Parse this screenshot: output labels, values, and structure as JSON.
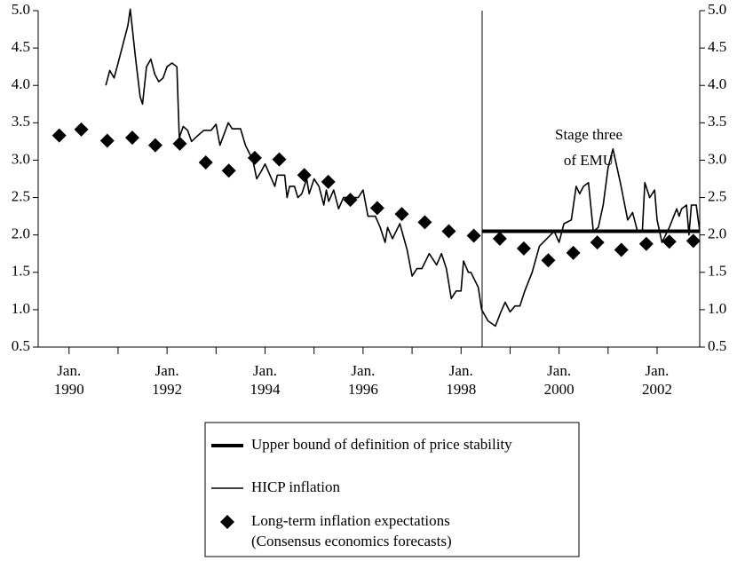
{
  "chart_data": {
    "type": "line",
    "xlim": [
      1989.37,
      2002.87
    ],
    "xticks": [
      {
        "value": 1990,
        "label": "Jan.\n1990"
      },
      {
        "value": 1992,
        "label": "Jan.\n1992"
      },
      {
        "value": 1994,
        "label": "Jan.\n1994"
      },
      {
        "value": 1996,
        "label": "Jan.\n1996"
      },
      {
        "value": 1998,
        "label": "Jan.\n1998"
      },
      {
        "value": 2000,
        "label": "Jan.\n2000"
      },
      {
        "value": 2002,
        "label": "Jan.\n2002"
      }
    ],
    "xminorticks": [
      1991,
      1993,
      1995,
      1997,
      1999,
      2001
    ],
    "ylim": [
      0.5,
      5.0
    ],
    "yticks": [
      {
        "value": 0.5,
        "label": "0.5"
      },
      {
        "value": 1,
        "label": "1.0"
      },
      {
        "value": 1.5,
        "label": "1.5"
      },
      {
        "value": 2,
        "label": "2.0"
      },
      {
        "value": 2.5,
        "label": "2.5"
      },
      {
        "value": 3,
        "label": "3.0"
      },
      {
        "value": 3.5,
        "label": "3.5"
      },
      {
        "value": 4,
        "label": "4.0"
      },
      {
        "value": 4.5,
        "label": "4.5"
      },
      {
        "value": 5,
        "label": "5.0"
      }
    ],
    "vline": 1998.43,
    "annotation": "Stage three\nof EMU",
    "series": [
      {
        "name": "Upper bound of definition of price stability",
        "style": "thick",
        "color": "#000",
        "x": [
          1998.43,
          2002.87
        ],
        "values": [
          2.05,
          2.05
        ]
      },
      {
        "name": "HICP inflation",
        "style": "thin",
        "color": "#000",
        "x": [
          1990.75,
          1990.83,
          1990.92,
          1991.0,
          1991.1,
          1991.2,
          1991.25,
          1991.35,
          1991.45,
          1991.5,
          1991.58,
          1991.67,
          1991.75,
          1991.83,
          1991.92,
          1992.0,
          1992.1,
          1992.2,
          1992.25,
          1992.33,
          1992.42,
          1992.5,
          1992.58,
          1992.75,
          1992.9,
          1993.0,
          1993.08,
          1993.25,
          1993.33,
          1993.5,
          1993.6,
          1993.75,
          1993.83,
          1993.92,
          1994.0,
          1994.1,
          1994.2,
          1994.25,
          1994.4,
          1994.45,
          1994.5,
          1994.6,
          1994.67,
          1994.75,
          1994.85,
          1994.9,
          1995.0,
          1995.1,
          1995.2,
          1995.25,
          1995.3,
          1995.4,
          1995.5,
          1995.6,
          1995.75,
          1995.9,
          1996.0,
          1996.1,
          1996.25,
          1996.35,
          1996.45,
          1996.5,
          1996.6,
          1996.75,
          1996.9,
          1997.0,
          1997.1,
          1997.2,
          1997.35,
          1997.4,
          1997.5,
          1997.6,
          1997.7,
          1997.8,
          1997.9,
          1998.0,
          1998.05,
          1998.15,
          1998.2,
          1998.35,
          1998.42,
          1998.55,
          1998.7,
          1998.8,
          1998.9,
          1999.0,
          1999.1,
          1999.2,
          1999.3,
          1999.45,
          1999.6,
          1999.75,
          1999.9,
          2000.0,
          2000.1,
          2000.25,
          2000.35,
          2000.42,
          2000.5,
          2000.6,
          2000.7,
          2000.8,
          2000.9,
          2001.0,
          2001.1,
          2001.25,
          2001.4,
          2001.5,
          2001.6,
          2001.7,
          2001.75,
          2001.85,
          2001.95,
          2002.0,
          2002.1,
          2002.25,
          2002.4,
          2002.45,
          2002.5,
          2002.6,
          2002.65,
          2002.7,
          2002.8,
          2002.87
        ],
        "values": [
          4.0,
          4.2,
          4.1,
          4.3,
          4.55,
          4.8,
          5.02,
          4.4,
          3.85,
          3.75,
          4.25,
          4.35,
          4.15,
          4.05,
          4.1,
          4.25,
          4.3,
          4.25,
          3.3,
          3.45,
          3.4,
          3.25,
          3.3,
          3.4,
          3.4,
          3.48,
          3.2,
          3.5,
          3.42,
          3.42,
          3.2,
          3.0,
          2.75,
          2.85,
          2.95,
          2.8,
          2.65,
          2.8,
          2.8,
          2.5,
          2.65,
          2.65,
          2.5,
          2.55,
          2.75,
          2.55,
          2.75,
          2.65,
          2.4,
          2.6,
          2.45,
          2.6,
          2.35,
          2.5,
          2.5,
          2.5,
          2.6,
          2.25,
          2.25,
          2.1,
          1.9,
          2.1,
          1.95,
          2.15,
          1.8,
          1.45,
          1.55,
          1.55,
          1.75,
          1.7,
          1.6,
          1.75,
          1.55,
          1.15,
          1.25,
          1.25,
          1.65,
          1.5,
          1.5,
          1.3,
          1.0,
          0.85,
          0.78,
          0.95,
          1.1,
          0.97,
          1.05,
          1.05,
          1.25,
          1.5,
          1.85,
          1.95,
          2.05,
          1.9,
          2.15,
          2.2,
          2.65,
          2.55,
          2.65,
          2.7,
          2.05,
          2.1,
          2.4,
          2.9,
          3.15,
          2.7,
          2.2,
          2.3,
          2.05,
          2.05,
          2.7,
          2.5,
          2.6,
          2.2,
          1.9,
          2.1,
          2.35,
          2.25,
          2.35,
          2.4,
          2.0,
          2.4,
          2.4,
          2.05
        ]
      },
      {
        "name": "Long-term inflation expectations\n(Consensus economics forecasts)",
        "style": "diamond",
        "color": "#000",
        "x": [
          1989.8,
          1990.25,
          1990.78,
          1991.29,
          1991.76,
          1992.26,
          1992.79,
          1993.26,
          1993.79,
          1994.29,
          1994.8,
          1995.29,
          1995.74,
          1996.29,
          1996.79,
          1997.26,
          1997.75,
          1998.26,
          1998.79,
          1999.28,
          1999.78,
          2000.29,
          2000.78,
          2001.27,
          2001.78,
          2002.25,
          2002.74
        ],
        "values": [
          3.33,
          3.41,
          3.26,
          3.3,
          3.2,
          3.22,
          2.97,
          2.86,
          3.03,
          3.01,
          2.8,
          2.71,
          2.47,
          2.36,
          2.28,
          2.17,
          2.05,
          1.99,
          1.95,
          1.82,
          1.66,
          1.76,
          1.9,
          1.8,
          1.88,
          1.91,
          1.92
        ]
      }
    ]
  }
}
